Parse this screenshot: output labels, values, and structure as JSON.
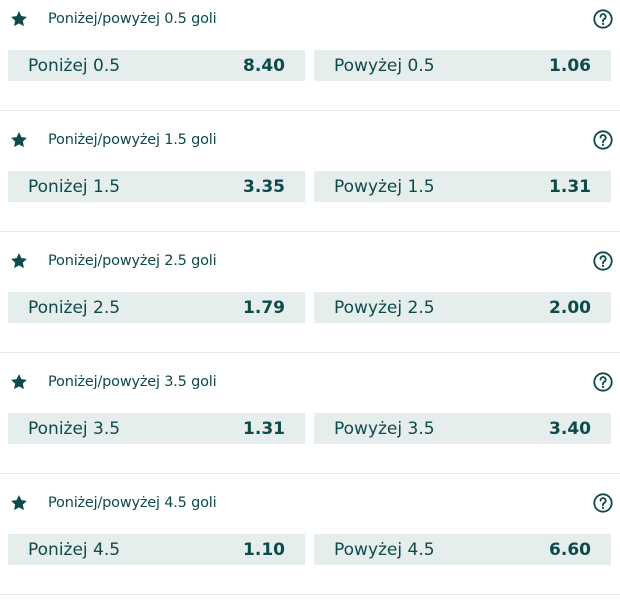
{
  "colors": {
    "text": "#0d4b4a",
    "button_bg": "#e6eded",
    "divider": "#e3e7e7"
  },
  "markets": [
    {
      "title": "Poniżej/powyżej 0.5 goli",
      "under": {
        "label": "Poniżej 0.5",
        "odds": "8.40"
      },
      "over": {
        "label": "Powyżej 0.5",
        "odds": "1.06"
      }
    },
    {
      "title": "Poniżej/powyżej 1.5 goli",
      "under": {
        "label": "Poniżej 1.5",
        "odds": "3.35"
      },
      "over": {
        "label": "Powyżej 1.5",
        "odds": "1.31"
      }
    },
    {
      "title": "Poniżej/powyżej 2.5 goli",
      "under": {
        "label": "Poniżej 2.5",
        "odds": "1.79"
      },
      "over": {
        "label": "Powyżej 2.5",
        "odds": "2.00"
      }
    },
    {
      "title": "Poniżej/powyżej 3.5 goli",
      "under": {
        "label": "Poniżej 3.5",
        "odds": "1.31"
      },
      "over": {
        "label": "Powyżej 3.5",
        "odds": "3.40"
      }
    },
    {
      "title": "Poniżej/powyżej 4.5 goli",
      "under": {
        "label": "Poniżej 4.5",
        "odds": "1.10"
      },
      "over": {
        "label": "Powyżej 4.5",
        "odds": "6.60"
      }
    }
  ],
  "icons": {
    "favorite": "star-icon",
    "help": "question-circle-icon"
  }
}
